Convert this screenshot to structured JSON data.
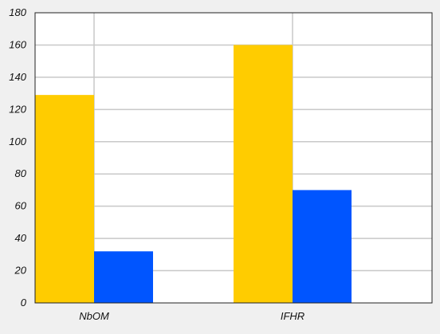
{
  "chart_data": {
    "type": "bar",
    "categories": [
      "NbOM",
      "IFHR"
    ],
    "series": [
      {
        "values": [
          129,
          160
        ],
        "color": "#ffcc00"
      },
      {
        "values": [
          32,
          70
        ],
        "color": "#0055ff"
      }
    ],
    "ylim": [
      0,
      180
    ],
    "yticks": [
      0,
      20,
      40,
      60,
      80,
      100,
      120,
      140,
      160,
      180
    ],
    "grid": true,
    "legend": "none",
    "title": "",
    "xlabel": "",
    "ylabel": ""
  }
}
